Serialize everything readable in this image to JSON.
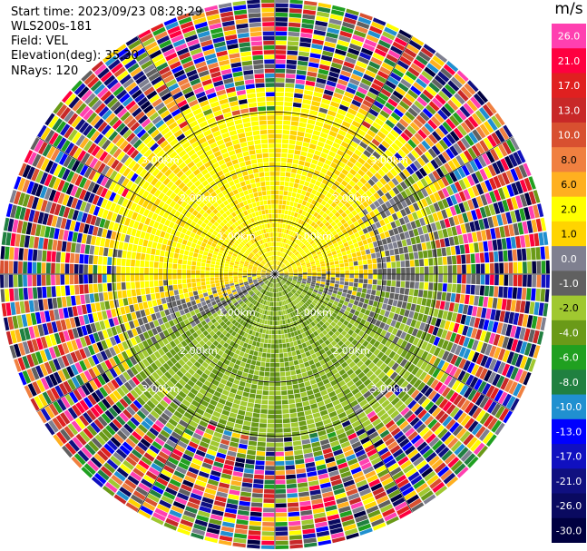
{
  "header": {
    "start_time": "Start time: 2023/09/23 08:28:29",
    "station": "WLS200s-181",
    "field": "Field: VEL",
    "elevation": "Elevation(deg): 35.30",
    "nrays": "NRays: 120"
  },
  "colorbar": {
    "unit": "m/s",
    "levels": [
      {
        "label": "26.0",
        "color": "#ff40b0"
      },
      {
        "label": "21.0",
        "color": "#ff0040"
      },
      {
        "label": "17.0",
        "color": "#e02020"
      },
      {
        "label": "13.0",
        "color": "#c82828"
      },
      {
        "label": "10.0",
        "color": "#d85030"
      },
      {
        "label": "8.0",
        "color": "#f08040"
      },
      {
        "label": "6.0",
        "color": "#ffb020"
      },
      {
        "label": "2.0",
        "color": "#ffff00"
      },
      {
        "label": "1.0",
        "color": "#ffd400"
      },
      {
        "label": "0.0",
        "color": "#7f8090"
      },
      {
        "label": "-1.0",
        "color": "#606060"
      },
      {
        "label": "-2.0",
        "color": "#a0c830"
      },
      {
        "label": "-4.0",
        "color": "#6a9a18"
      },
      {
        "label": "-6.0",
        "color": "#20a020"
      },
      {
        "label": "-8.0",
        "color": "#208040"
      },
      {
        "label": "-10.0",
        "color": "#2090d0"
      },
      {
        "label": "-13.0",
        "color": "#0000ff"
      },
      {
        "label": "-17.0",
        "color": "#1010c0"
      },
      {
        "label": "-21.0",
        "color": "#101080"
      },
      {
        "label": "-26.0",
        "color": "#0a0a60"
      },
      {
        "label": "-30.0",
        "color": "#000040"
      }
    ]
  },
  "chart_data": {
    "type": "heatmap",
    "field": "VEL",
    "nrays": 120,
    "elevation_deg": 35.3,
    "range_rings": [
      {
        "label": "1.00km",
        "km": 1.0
      },
      {
        "label": "2.00km",
        "km": 2.0
      },
      {
        "label": "3.00km",
        "km": 3.0
      }
    ],
    "ring_label_angles_deg": [
      -45,
      45,
      135,
      225
    ],
    "max_range_km": 5.2,
    "spoke_angles_deg": [
      0,
      30,
      60,
      90,
      120,
      150,
      180,
      210,
      240,
      270,
      300,
      330
    ],
    "velocity_pattern": {
      "north_sector": "positive 1.0 to 2.0 m/s (yellow)",
      "west_east_band": "approximately 0.0 to -1.0 m/s (grey)",
      "south_sector": "negative -2.0 to -4.0 m/s (green)",
      "outer_ranges_beyond_km": 3.5,
      "outer_ranges": "noise, random across full scale"
    }
  }
}
